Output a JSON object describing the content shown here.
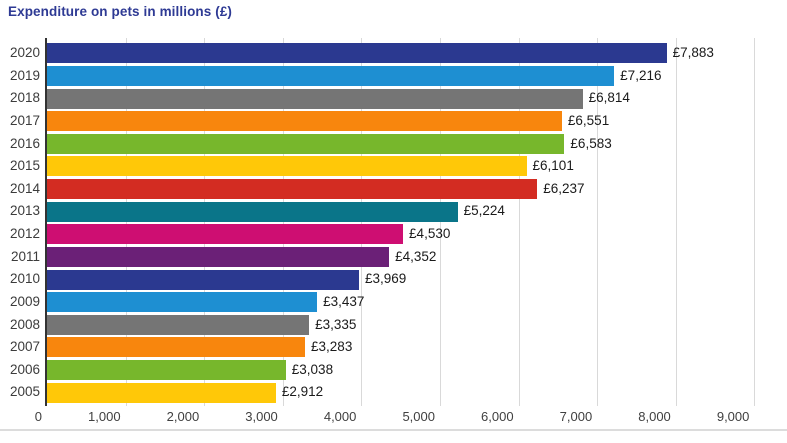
{
  "header": {
    "title": "Expenditure on pets in millions (£)",
    "title_color": "#2E3A94"
  },
  "chart_data": {
    "type": "bar",
    "orientation": "horizontal",
    "title": "Expenditure on pets in millions (£)",
    "xlabel": "",
    "ylabel": "",
    "categories": [
      "2020",
      "2019",
      "2018",
      "2017",
      "2016",
      "2015",
      "2014",
      "2013",
      "2012",
      "2011",
      "2010",
      "2009",
      "2008",
      "2007",
      "2006",
      "2005"
    ],
    "values": [
      7883,
      7216,
      6814,
      6551,
      6583,
      6101,
      6237,
      5224,
      4530,
      4352,
      3969,
      3437,
      3335,
      3283,
      3038,
      2912
    ],
    "value_labels": [
      "£7,883",
      "£7,216",
      "£6,814",
      "£6,551",
      "£6,583",
      "£6,101",
      "£6,237",
      "£5,224",
      "£4,530",
      "£4,352",
      "£3,969",
      "£3,437",
      "£3,335",
      "£3,283",
      "£3,038",
      "£2,912"
    ],
    "bar_colors": [
      "#2B3990",
      "#1E8FD2",
      "#757575",
      "#F8860D",
      "#77B72C",
      "#FFC808",
      "#D32C22",
      "#0A7589",
      "#CE0E72",
      "#6B2077",
      "#2B3990",
      "#1E8FD2",
      "#757575",
      "#F8860D",
      "#77B72C",
      "#FFC808"
    ],
    "xlim": [
      0,
      9000
    ],
    "xtick_values": [
      0,
      1000,
      2000,
      3000,
      4000,
      5000,
      6000,
      7000,
      8000,
      9000
    ],
    "xtick_labels": [
      "0",
      "1,000",
      "2,000",
      "3,000",
      "4,000",
      "5,000",
      "6,000",
      "7,000",
      "8,000",
      "9,000"
    ],
    "grid": true,
    "legend": "none",
    "colors": {
      "gridline": "#d9d9d9",
      "axis_line": "#333333",
      "tick_text": "#404040",
      "value_text": "#1a1a1a",
      "year_text": "#3c3c3c",
      "divider": "#dcdcdc"
    }
  }
}
